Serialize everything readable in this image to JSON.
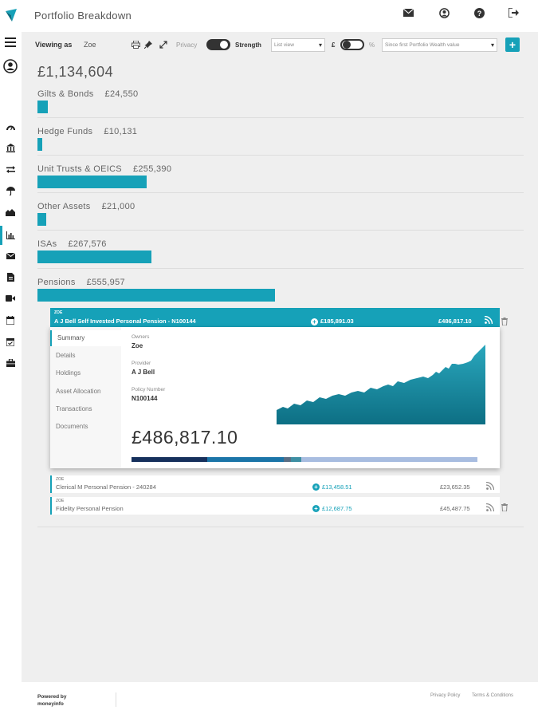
{
  "app": {
    "title": "Portfolio Breakdown"
  },
  "sidebar": {
    "items": [
      {
        "icon": "hamburger-icon"
      },
      {
        "icon": "user-circle-icon"
      },
      {
        "icon": "dashboard-icon"
      },
      {
        "icon": "bank-icon"
      },
      {
        "icon": "transfer-icon"
      },
      {
        "icon": "umbrella-icon"
      },
      {
        "icon": "property-icon"
      },
      {
        "icon": "bar-chart-icon"
      },
      {
        "icon": "mail-icon"
      },
      {
        "icon": "document-icon"
      },
      {
        "icon": "video-icon"
      },
      {
        "icon": "calendar-icon"
      },
      {
        "icon": "calendar-check-icon"
      },
      {
        "icon": "briefcase-icon"
      }
    ]
  },
  "topbar": {
    "icons": [
      "mail-icon",
      "user-icon",
      "help-icon",
      "logout-icon"
    ]
  },
  "toolbar": {
    "viewing_label": "Viewing as",
    "viewing_name": "Zoe",
    "privacy_label": "Privacy",
    "strength_label": "Strength",
    "view_select": "List view",
    "currency_label": "£",
    "percent_label": "%",
    "period_select": "Since first Portfolio Wealth value",
    "add_label": "+"
  },
  "total_value": "£1,134,604",
  "categories": [
    {
      "name": "Gilts & Bonds",
      "value": "£24,550",
      "share": 0.0442
    },
    {
      "name": "Hedge Funds",
      "value": "£10,131",
      "share": 0.0182
    },
    {
      "name": "Unit Trusts & OEICS",
      "value": "£255,390",
      "share": 0.4593
    },
    {
      "name": "Other Assets",
      "value": "£21,000",
      "share": 0.0378
    },
    {
      "name": "ISAs",
      "value": "£267,576",
      "share": 0.4813
    },
    {
      "name": "Pensions",
      "value": "£555,957",
      "share": 1.0
    }
  ],
  "main_pension": {
    "owner": "ZOE",
    "title": "A J Bell Self Invested Personal Pension - N100144",
    "growth": "£185,891.03",
    "value": "£486,817.10",
    "menu": [
      "Summary",
      "Details",
      "Holdings",
      "Asset Allocation",
      "Transactions",
      "Documents"
    ],
    "owners_label": "Owners",
    "owners_value": "Zoe",
    "provider_label": "Provider",
    "provider_value": "A J Bell",
    "policy_label": "Policy Number",
    "policy_value": "N100144",
    "big_value": "£486,817.10",
    "allocation": [
      {
        "share": 0.22,
        "color": "#16305c"
      },
      {
        "share": 0.22,
        "color": "#1b75a8"
      },
      {
        "share": 0.02,
        "color": "#5a6e84"
      },
      {
        "share": 0.03,
        "color": "#3e8fa3"
      },
      {
        "share": 0.51,
        "color": "#a8bde0"
      }
    ]
  },
  "other_pensions": [
    {
      "owner": "ZOE",
      "title": "Clerical M Personal Pension - 240284",
      "growth": "£13,458.51",
      "value": "£23,652.35"
    },
    {
      "owner": "ZOE",
      "title": "Fidelity Personal Pension",
      "growth": "£12,687.75",
      "value": "£45,487.75"
    }
  ],
  "footer": {
    "powered_line1": "Powered by",
    "powered_line2": "moneyinfo",
    "privacy_policy": "Privacy Policy",
    "terms": "Terms & Conditions"
  },
  "colors": {
    "accent": "#16a1b8"
  }
}
